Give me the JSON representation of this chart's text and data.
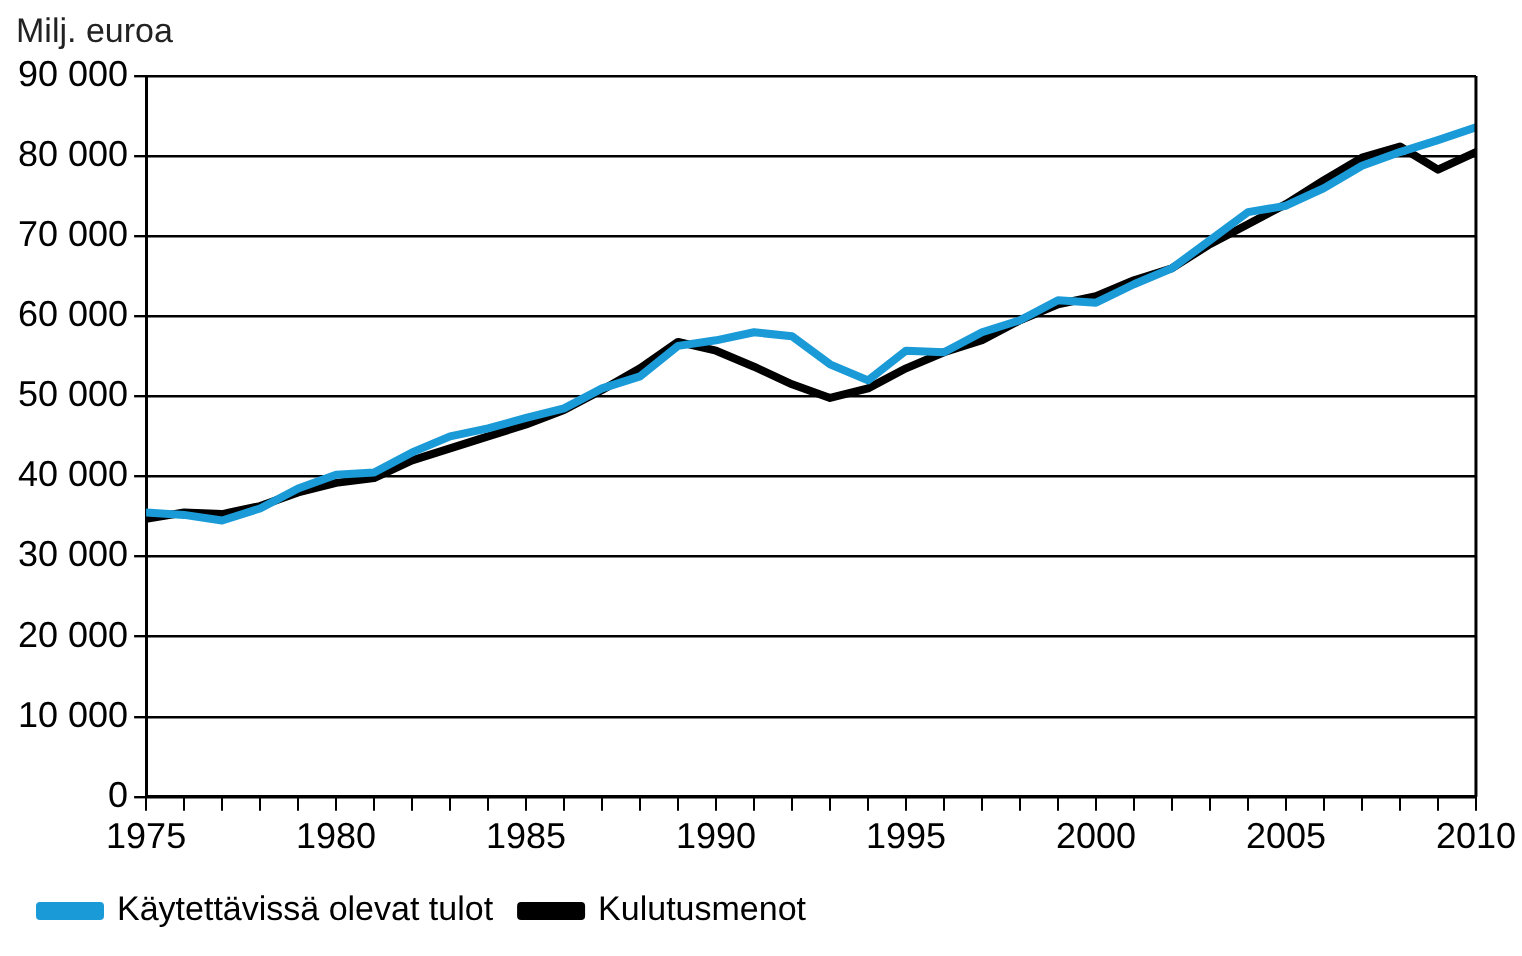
{
  "chart_data": {
    "type": "line",
    "ylabel": "Milj. euroa",
    "x": [
      1975,
      1976,
      1977,
      1978,
      1979,
      1980,
      1981,
      1982,
      1983,
      1984,
      1985,
      1986,
      1987,
      1988,
      1989,
      1990,
      1991,
      1992,
      1993,
      1994,
      1995,
      1996,
      1997,
      1998,
      1999,
      2000,
      2001,
      2002,
      2003,
      2004,
      2005,
      2006,
      2007,
      2008,
      2009,
      2010
    ],
    "series": [
      {
        "name": "Käytettävissä olevat tulot",
        "color": "#1a9ad6",
        "values": [
          35500,
          35200,
          34500,
          36000,
          38500,
          40200,
          40500,
          43000,
          45000,
          46000,
          47300,
          48500,
          51000,
          52500,
          56300,
          57000,
          58000,
          57500,
          54000,
          52000,
          55700,
          55500,
          58000,
          59500,
          62000,
          61700,
          64000,
          66000,
          69500,
          73000,
          73800,
          76000,
          78800,
          80500,
          82000,
          83600
        ]
      },
      {
        "name": "Kulutusmenot",
        "color": "#000000",
        "values": [
          34700,
          35500,
          35300,
          36300,
          38000,
          39200,
          39800,
          42000,
          43500,
          45000,
          46500,
          48300,
          50800,
          53500,
          56800,
          55700,
          53700,
          51500,
          49800,
          51000,
          53500,
          55500,
          57000,
          59500,
          61500,
          62500,
          64500,
          66000,
          69000,
          71500,
          74000,
          77000,
          79800,
          81200,
          78300,
          80500
        ]
      }
    ],
    "xlim": [
      1975,
      2010
    ],
    "xticks": [
      1975,
      {
        "value": 1976,
        "label": null
      },
      {
        "value": 1977,
        "label": null
      },
      {
        "value": 1978,
        "label": null
      },
      {
        "value": 1979,
        "label": null
      },
      1980,
      {
        "value": 1981,
        "label": null
      },
      {
        "value": 1982,
        "label": null
      },
      {
        "value": 1983,
        "label": null
      },
      {
        "value": 1984,
        "label": null
      },
      1985,
      {
        "value": 1986,
        "label": null
      },
      {
        "value": 1987,
        "label": null
      },
      {
        "value": 1988,
        "label": null
      },
      {
        "value": 1989,
        "label": null
      },
      1990,
      {
        "value": 1991,
        "label": null
      },
      {
        "value": 1992,
        "label": null
      },
      {
        "value": 1993,
        "label": null
      },
      {
        "value": 1994,
        "label": null
      },
      1995,
      {
        "value": 1996,
        "label": null
      },
      {
        "value": 1997,
        "label": null
      },
      {
        "value": 1998,
        "label": null
      },
      {
        "value": 1999,
        "label": null
      },
      2000,
      {
        "value": 2001,
        "label": null
      },
      {
        "value": 2002,
        "label": null
      },
      {
        "value": 2003,
        "label": null
      },
      {
        "value": 2004,
        "label": null
      },
      2005,
      {
        "value": 2006,
        "label": null
      },
      {
        "value": 2007,
        "label": null
      },
      {
        "value": 2008,
        "label": null
      },
      {
        "value": 2009,
        "label": null
      },
      2010
    ],
    "ylim": [
      0,
      90000
    ],
    "yticks": [
      0,
      {
        "value": 10000,
        "label": "10 000"
      },
      {
        "value": 20000,
        "label": "20 000"
      },
      {
        "value": 30000,
        "label": "30 000"
      },
      {
        "value": 40000,
        "label": "40 000"
      },
      {
        "value": 50000,
        "label": "50 000"
      },
      {
        "value": 60000,
        "label": "60 000"
      },
      {
        "value": 70000,
        "label": "70 000"
      },
      {
        "value": 80000,
        "label": "80 000"
      },
      {
        "value": 90000,
        "label": "90 000"
      }
    ],
    "grid": "y",
    "legend": "bottom",
    "marker": "none",
    "line_style": "solid"
  }
}
